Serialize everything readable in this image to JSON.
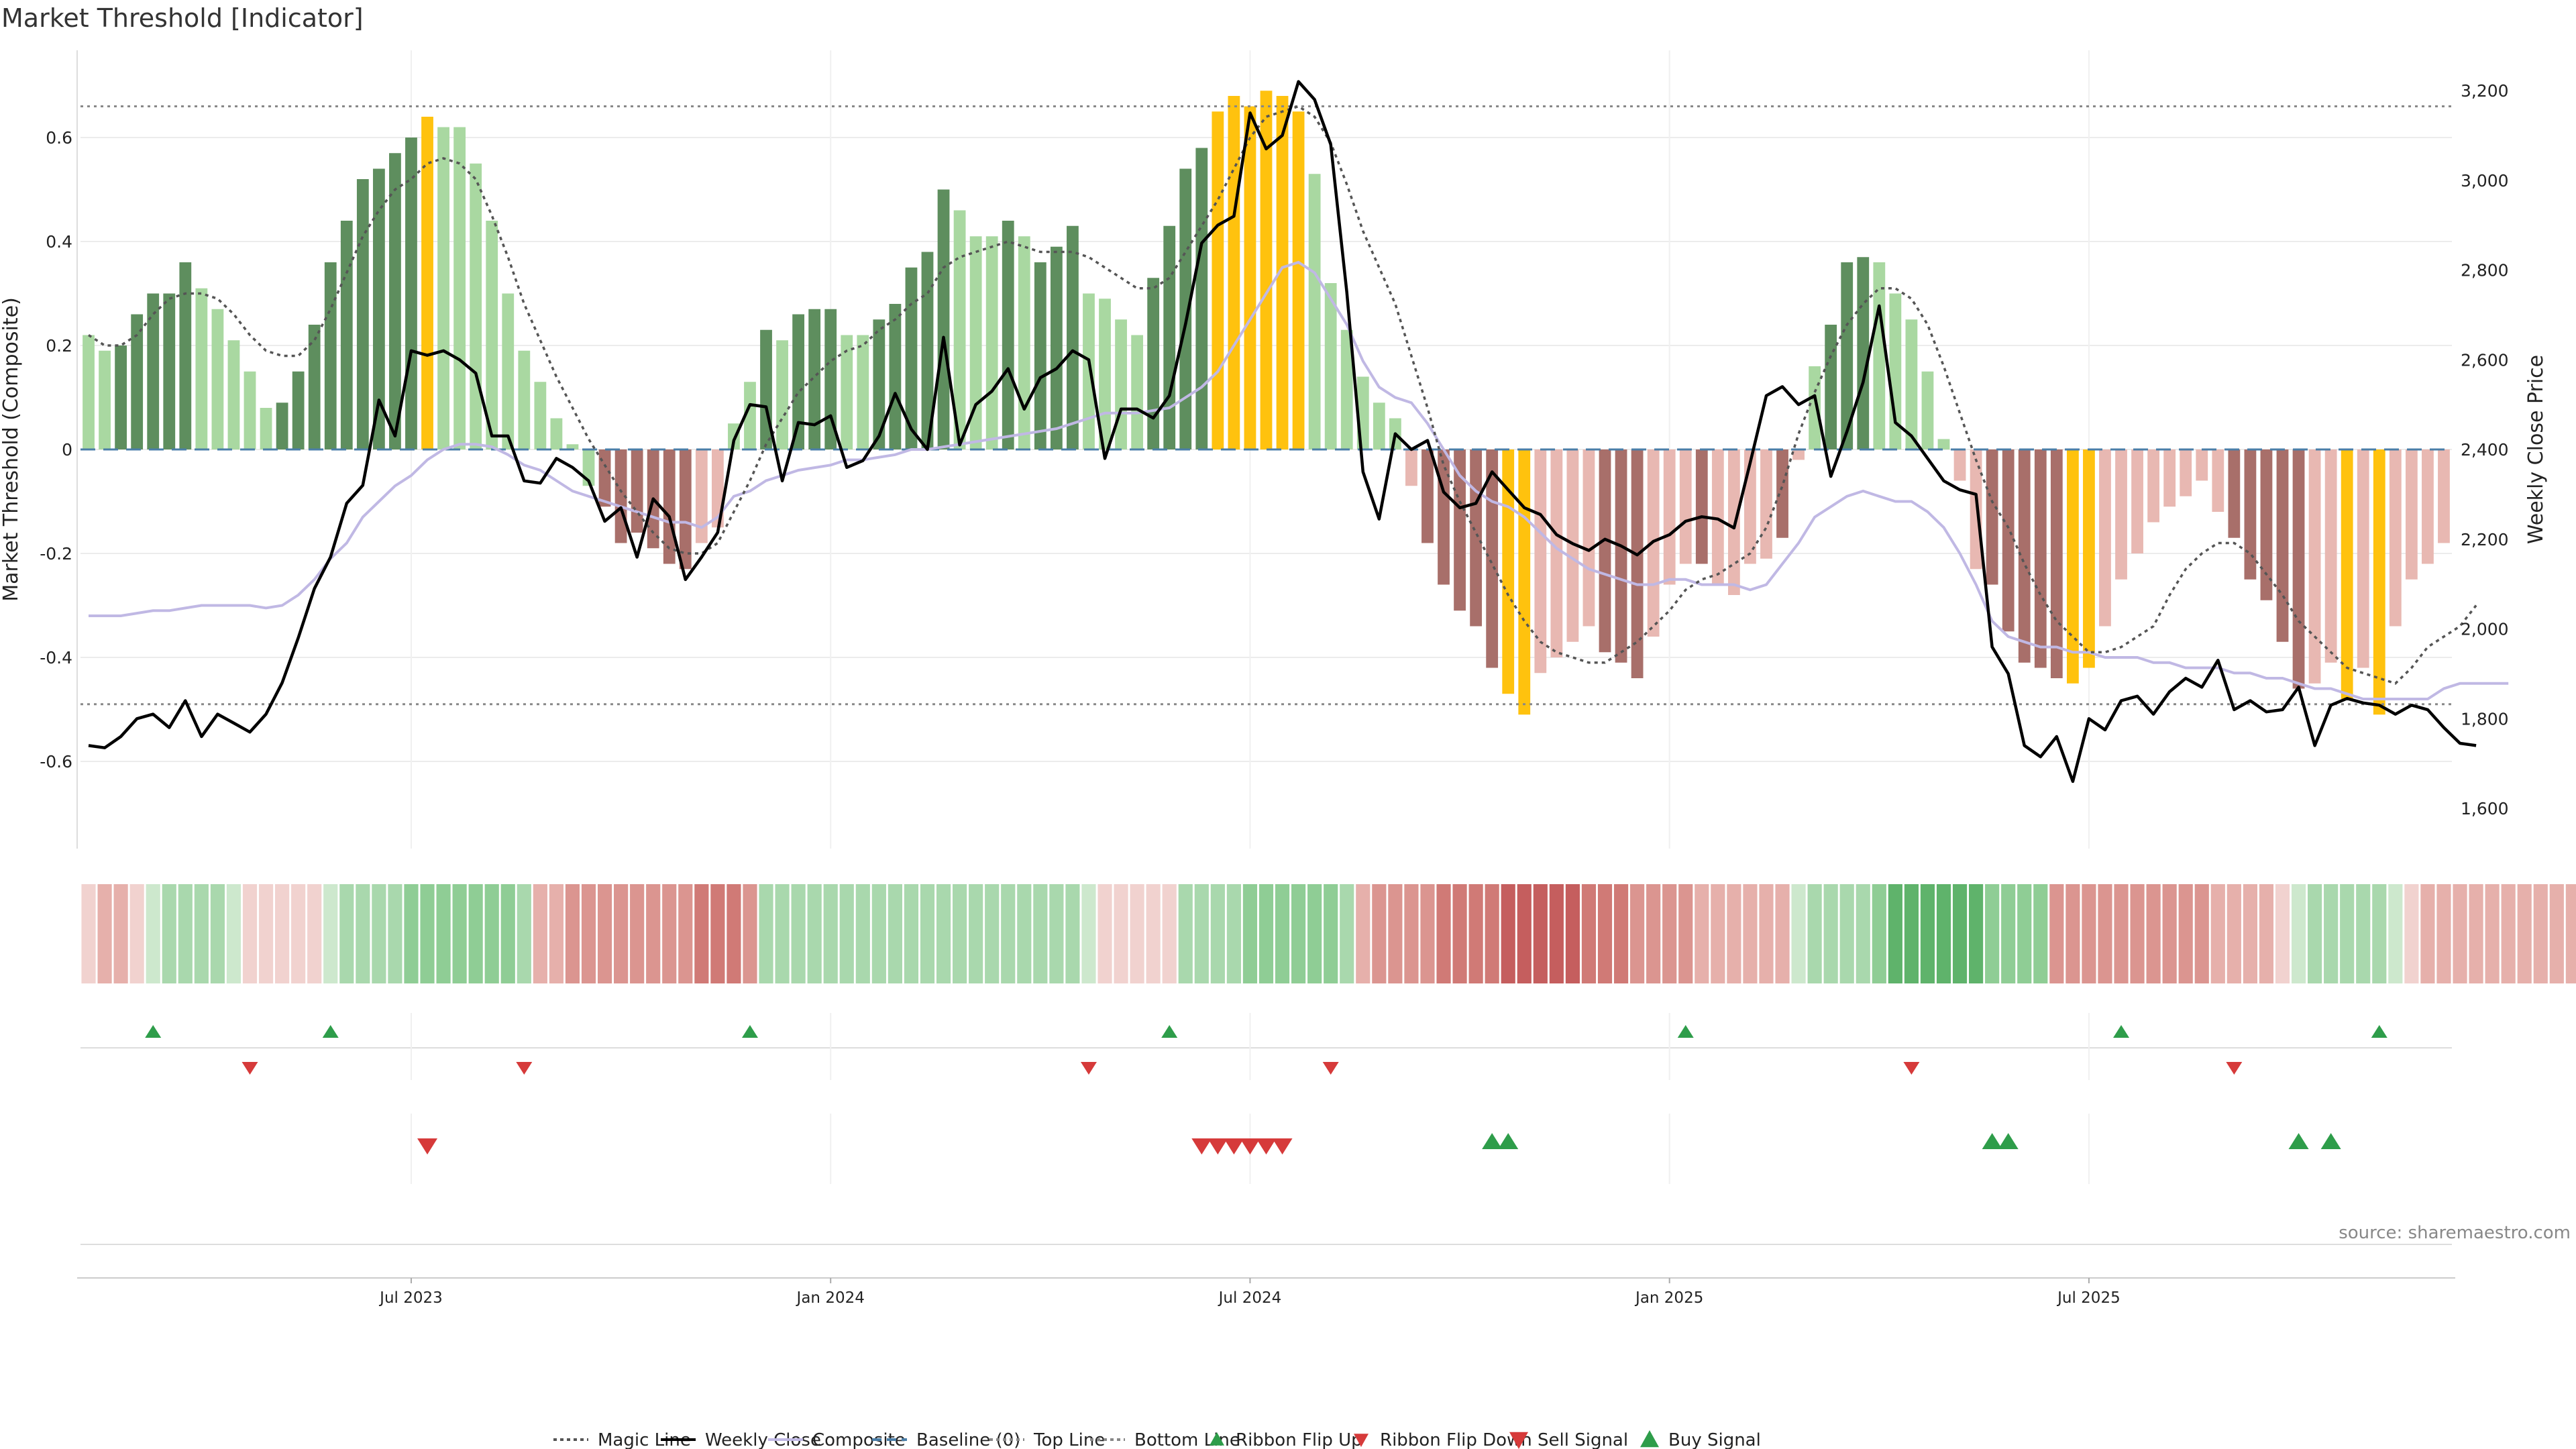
{
  "title": "Market Threshold [Indicator]",
  "source": "source: sharemaestro.com",
  "colors": {
    "strong_up": "#5e8e5e",
    "weak_up": "#a9d8a1",
    "strong_down": "#a86f6a",
    "weak_down": "#e8b8b2",
    "extreme": "#ffc20e",
    "close": "#000000",
    "composite": "#c0b8e4",
    "magic": "#555555",
    "baseline": "#4a7ea8",
    "level": "#888888",
    "buy": "#2e9d4a",
    "sell": "#d63a3a"
  },
  "chart_data": {
    "type": "bar",
    "title": "Market Threshold [Indicator]",
    "ylabel": "Market Threshold (Composite)",
    "y2label": "Weekly Close Price",
    "ylim": [
      -0.75,
      0.75
    ],
    "y2lim": [
      1500,
      3300
    ],
    "yticks": [
      -0.6,
      -0.4,
      -0.2,
      0,
      0.2,
      0.4,
      0.6
    ],
    "yticklabels": [
      "-0.6",
      "-0.4",
      "-0.2",
      "0",
      "0.2",
      "0.4",
      "0.6"
    ],
    "y2ticks": [
      1600,
      1800,
      2000,
      2200,
      2400,
      2600,
      2800,
      3000,
      3200
    ],
    "y2ticklabels": [
      "1,600",
      "1,800",
      "2,000",
      "2,200",
      "2,400",
      "2,600",
      "2,800",
      "3,000",
      "3,200"
    ],
    "top_line": 0.66,
    "bottom_line": -0.49,
    "baseline": 0,
    "x_labels": [
      {
        "week": 20,
        "label": "Jul 2023"
      },
      {
        "week": 46,
        "label": "Jan 2024"
      },
      {
        "week": 72,
        "label": "Jul 2024"
      },
      {
        "week": 98,
        "label": "Jan 2025"
      },
      {
        "week": 124,
        "label": "Jul 2025"
      }
    ],
    "bars": [
      0.22,
      0.19,
      0.2,
      0.26,
      0.3,
      0.3,
      0.36,
      0.31,
      0.27,
      0.21,
      0.15,
      0.08,
      0.09,
      0.15,
      0.24,
      0.36,
      0.44,
      0.52,
      0.54,
      0.57,
      0.6,
      0.64,
      0.62,
      0.62,
      0.55,
      0.44,
      0.3,
      0.19,
      0.13,
      0.06,
      0.01,
      -0.07,
      -0.11,
      -0.18,
      -0.16,
      -0.19,
      -0.22,
      -0.23,
      -0.18,
      -0.15,
      0.05,
      0.13,
      0.23,
      0.21,
      0.26,
      0.27,
      0.27,
      0.22,
      0.22,
      0.25,
      0.28,
      0.35,
      0.38,
      0.5,
      0.46,
      0.41,
      0.41,
      0.44,
      0.41,
      0.36,
      0.39,
      0.43,
      0.3,
      0.29,
      0.25,
      0.22,
      0.33,
      0.43,
      0.54,
      0.58,
      0.65,
      0.68,
      0.66,
      0.69,
      0.68,
      0.65,
      0.53,
      0.32,
      0.23,
      0.14,
      0.09,
      0.06,
      -0.07,
      -0.18,
      -0.26,
      -0.31,
      -0.34,
      -0.42,
      -0.47,
      -0.51,
      -0.43,
      -0.4,
      -0.37,
      -0.34,
      -0.39,
      -0.41,
      -0.44,
      -0.36,
      -0.26,
      -0.22,
      -0.22,
      -0.26,
      -0.28,
      -0.22,
      -0.21,
      -0.17,
      -0.02,
      0.16,
      0.24,
      0.36,
      0.37,
      0.36,
      0.3,
      0.25,
      0.15,
      0.02,
      -0.06,
      -0.23,
      -0.26,
      -0.35,
      -0.41,
      -0.42,
      -0.44,
      -0.45,
      -0.42,
      -0.34,
      -0.25,
      -0.2,
      -0.14,
      -0.11,
      -0.09,
      -0.06,
      -0.12,
      -0.17,
      -0.25,
      -0.29,
      -0.37,
      -0.46,
      -0.45,
      -0.41,
      -0.48,
      -0.42,
      -0.51,
      -0.34,
      -0.25,
      -0.22,
      -0.18
    ],
    "bar_kinds": [
      "w",
      "w",
      "s",
      "s",
      "s",
      "s",
      "s",
      "w",
      "w",
      "w",
      "w",
      "w",
      "s",
      "s",
      "s",
      "s",
      "s",
      "s",
      "s",
      "s",
      "s",
      "y",
      "w",
      "w",
      "w",
      "w",
      "w",
      "w",
      "w",
      "w",
      "w",
      "w",
      "d",
      "d",
      "d",
      "d",
      "d",
      "d",
      "e",
      "e",
      "w",
      "w",
      "s",
      "w",
      "s",
      "s",
      "s",
      "w",
      "w",
      "s",
      "s",
      "s",
      "s",
      "s",
      "w",
      "w",
      "w",
      "s",
      "w",
      "s",
      "s",
      "s",
      "w",
      "w",
      "w",
      "w",
      "s",
      "s",
      "s",
      "s",
      "y",
      "y",
      "y",
      "y",
      "y",
      "y",
      "w",
      "w",
      "w",
      "w",
      "w",
      "w",
      "e",
      "d",
      "d",
      "d",
      "d",
      "d",
      "y",
      "y",
      "e",
      "e",
      "e",
      "e",
      "d",
      "d",
      "d",
      "e",
      "e",
      "e",
      "d",
      "e",
      "e",
      "e",
      "e",
      "d",
      "e",
      "w",
      "s",
      "s",
      "s",
      "w",
      "w",
      "w",
      "w",
      "w",
      "e",
      "e",
      "d",
      "d",
      "d",
      "d",
      "d",
      "y",
      "y",
      "e",
      "e",
      "e",
      "e",
      "e",
      "e",
      "e",
      "e",
      "d",
      "d",
      "d",
      "d",
      "d",
      "e",
      "e",
      "y",
      "e",
      "y",
      "e",
      "e",
      "e",
      "e"
    ],
    "weekly_close": [
      1740,
      1735,
      1760,
      1800,
      1810,
      1780,
      1840,
      1760,
      1810,
      1790,
      1770,
      1810,
      1880,
      1980,
      2090,
      2160,
      2280,
      2320,
      2510,
      2430,
      2620,
      2610,
      2620,
      2600,
      2570,
      2430,
      2430,
      2330,
      2325,
      2380,
      2360,
      2330,
      2240,
      2270,
      2160,
      2290,
      2250,
      2110,
      2160,
      2215,
      2420,
      2500,
      2495,
      2330,
      2460,
      2455,
      2475,
      2360,
      2375,
      2430,
      2525,
      2445,
      2400,
      2650,
      2410,
      2500,
      2530,
      2580,
      2490,
      2560,
      2580,
      2620,
      2600,
      2380,
      2490,
      2490,
      2470,
      2520,
      2680,
      2860,
      2900,
      2920,
      3150,
      3070,
      3100,
      3220,
      3180,
      3080,
      2750,
      2350,
      2245,
      2435,
      2400,
      2420,
      2305,
      2270,
      2280,
      2350,
      2310,
      2270,
      2255,
      2210,
      2190,
      2175,
      2200,
      2185,
      2165,
      2195,
      2210,
      2240,
      2250,
      2245,
      2225,
      2370,
      2520,
      2540,
      2500,
      2520,
      2340,
      2440,
      2550,
      2720,
      2460,
      2430,
      2380,
      2330,
      2310,
      2300,
      1960,
      1900,
      1740,
      1715,
      1760,
      1660,
      1800,
      1775,
      1840,
      1850,
      1810,
      1860,
      1890,
      1870,
      1930,
      1820,
      1840,
      1815,
      1820,
      1870,
      1740,
      1830,
      1845,
      1835,
      1830,
      1810,
      1830,
      1820,
      1780,
      1745,
      1740
    ],
    "composite": [
      -0.32,
      -0.32,
      -0.32,
      -0.315,
      -0.31,
      -0.31,
      -0.305,
      -0.3,
      -0.3,
      -0.3,
      -0.3,
      -0.305,
      -0.3,
      -0.28,
      -0.25,
      -0.21,
      -0.18,
      -0.13,
      -0.1,
      -0.07,
      -0.05,
      -0.02,
      0,
      0.01,
      0.01,
      0.005,
      -0.01,
      -0.03,
      -0.04,
      -0.06,
      -0.08,
      -0.09,
      -0.1,
      -0.11,
      -0.12,
      -0.13,
      -0.14,
      -0.14,
      -0.15,
      -0.13,
      -0.09,
      -0.08,
      -0.06,
      -0.05,
      -0.04,
      -0.035,
      -0.03,
      -0.02,
      -0.02,
      -0.015,
      -0.01,
      0,
      0,
      0.005,
      0.01,
      0.015,
      0.02,
      0.025,
      0.03,
      0.035,
      0.04,
      0.05,
      0.06,
      0.07,
      0.07,
      0.07,
      0.075,
      0.08,
      0.1,
      0.12,
      0.15,
      0.2,
      0.25,
      0.3,
      0.35,
      0.36,
      0.34,
      0.29,
      0.24,
      0.17,
      0.12,
      0.1,
      0.09,
      0.05,
      0,
      -0.05,
      -0.08,
      -0.1,
      -0.11,
      -0.13,
      -0.16,
      -0.19,
      -0.21,
      -0.23,
      -0.24,
      -0.25,
      -0.26,
      -0.26,
      -0.25,
      -0.25,
      -0.26,
      -0.26,
      -0.26,
      -0.27,
      -0.26,
      -0.22,
      -0.18,
      -0.13,
      -0.11,
      -0.09,
      -0.08,
      -0.09,
      -0.1,
      -0.1,
      -0.12,
      -0.15,
      -0.2,
      -0.26,
      -0.33,
      -0.36,
      -0.37,
      -0.38,
      -0.38,
      -0.39,
      -0.39,
      -0.4,
      -0.4,
      -0.4,
      -0.41,
      -0.41,
      -0.42,
      -0.42,
      -0.42,
      -0.43,
      -0.43,
      -0.44,
      -0.44,
      -0.45,
      -0.46,
      -0.46,
      -0.47,
      -0.48,
      -0.48,
      -0.48,
      -0.48,
      -0.48,
      -0.46,
      -0.45,
      -0.45,
      -0.45,
      -0.45
    ],
    "magic_line": [
      0.22,
      0.2,
      0.2,
      0.22,
      0.26,
      0.29,
      0.3,
      0.3,
      0.29,
      0.26,
      0.22,
      0.19,
      0.18,
      0.18,
      0.21,
      0.27,
      0.34,
      0.41,
      0.46,
      0.5,
      0.52,
      0.55,
      0.56,
      0.55,
      0.52,
      0.45,
      0.37,
      0.28,
      0.21,
      0.14,
      0.08,
      0.02,
      -0.03,
      -0.08,
      -0.12,
      -0.16,
      -0.19,
      -0.2,
      -0.2,
      -0.18,
      -0.12,
      -0.06,
      0.01,
      0.06,
      0.11,
      0.14,
      0.17,
      0.19,
      0.2,
      0.23,
      0.25,
      0.28,
      0.3,
      0.35,
      0.37,
      0.38,
      0.39,
      0.4,
      0.39,
      0.38,
      0.38,
      0.38,
      0.37,
      0.35,
      0.33,
      0.31,
      0.31,
      0.33,
      0.38,
      0.43,
      0.48,
      0.54,
      0.6,
      0.64,
      0.65,
      0.66,
      0.64,
      0.59,
      0.51,
      0.42,
      0.35,
      0.28,
      0.18,
      0.08,
      -0.03,
      -0.1,
      -0.16,
      -0.22,
      -0.28,
      -0.33,
      -0.37,
      -0.39,
      -0.4,
      -0.41,
      -0.41,
      -0.39,
      -0.37,
      -0.34,
      -0.31,
      -0.27,
      -0.25,
      -0.24,
      -0.22,
      -0.2,
      -0.15,
      -0.07,
      0.03,
      0.11,
      0.18,
      0.24,
      0.28,
      0.31,
      0.31,
      0.29,
      0.24,
      0.16,
      0.07,
      -0.02,
      -0.1,
      -0.15,
      -0.22,
      -0.28,
      -0.33,
      -0.36,
      -0.39,
      -0.39,
      -0.38,
      -0.36,
      -0.34,
      -0.28,
      -0.23,
      -0.2,
      -0.18,
      -0.18,
      -0.2,
      -0.24,
      -0.28,
      -0.33,
      -0.36,
      -0.39,
      -0.42,
      -0.43,
      -0.44,
      -0.45,
      -0.42,
      -0.38,
      -0.36,
      -0.34,
      -0.3
    ],
    "ribbon": [
      -1,
      -2,
      -2,
      -1,
      1,
      2,
      2,
      2,
      2,
      1,
      -1,
      -1,
      -1,
      -1,
      -1,
      1,
      2,
      2,
      2,
      2,
      3,
      3,
      3,
      3,
      3,
      3,
      3,
      2,
      -2,
      -2,
      -3,
      -3,
      -3,
      -3,
      -3,
      -3,
      -3,
      -3,
      -4,
      -4,
      -4,
      -3,
      2,
      2,
      2,
      2,
      2,
      2,
      2,
      2,
      2,
      2,
      2,
      2,
      2,
      2,
      2,
      2,
      2,
      2,
      2,
      2,
      1,
      -1,
      -1,
      -1,
      -1,
      -1,
      2,
      2,
      2,
      2,
      3,
      3,
      3,
      3,
      3,
      3,
      2,
      -2,
      -3,
      -3,
      -3,
      -3,
      -4,
      -4,
      -4,
      -4,
      -5,
      -5,
      -5,
      -5,
      -5,
      -4,
      -4,
      -4,
      -3,
      -3,
      -3,
      -3,
      -2,
      -2,
      -2,
      -2,
      -2,
      -2,
      1,
      2,
      2,
      2,
      2,
      3,
      4,
      4,
      4,
      4,
      4,
      4,
      3,
      3,
      3,
      3,
      -3,
      -3,
      -3,
      -3,
      -3,
      -3,
      -3,
      -3,
      -3,
      -3,
      -2,
      -2,
      -2,
      -2,
      -1,
      1,
      2,
      2,
      2,
      2,
      2,
      1,
      -1,
      -2,
      -2,
      -2,
      -2,
      -2,
      -2,
      -2,
      -2,
      -2,
      -2,
      1,
      1
    ],
    "ribbon_flip_up_weeks": [
      4,
      15,
      41,
      67,
      99,
      126,
      142
    ],
    "ribbon_flip_down_weeks": [
      10,
      27,
      62,
      77,
      113,
      133
    ],
    "sell_signal_weeks": [
      21,
      69,
      70,
      71,
      72,
      73,
      74
    ],
    "buy_signal_weeks": [
      87,
      88,
      118,
      119,
      137,
      139
    ],
    "legend": [
      {
        "label": "Magic Line",
        "kind": "dotted",
        "color": "#555555"
      },
      {
        "label": "Weekly Close",
        "kind": "line",
        "color": "#000000"
      },
      {
        "label": "Composite",
        "kind": "line",
        "color": "#c0b8e4"
      },
      {
        "label": "Baseline (0)",
        "kind": "dashed",
        "color": "#4a7ea8"
      },
      {
        "label": "Top Line",
        "kind": "dotted",
        "color": "#888888"
      },
      {
        "label": "Bottom Line",
        "kind": "dotted",
        "color": "#888888"
      },
      {
        "label": "Ribbon Flip Up",
        "kind": "tri-up-small",
        "color": "#2e9d4a"
      },
      {
        "label": "Ribbon Flip Down",
        "kind": "tri-down-small",
        "color": "#d63a3a"
      },
      {
        "label": "Sell Signal",
        "kind": "tri-down",
        "color": "#d63a3a"
      },
      {
        "label": "Buy Signal",
        "kind": "tri-up",
        "color": "#2e9d4a"
      }
    ]
  }
}
